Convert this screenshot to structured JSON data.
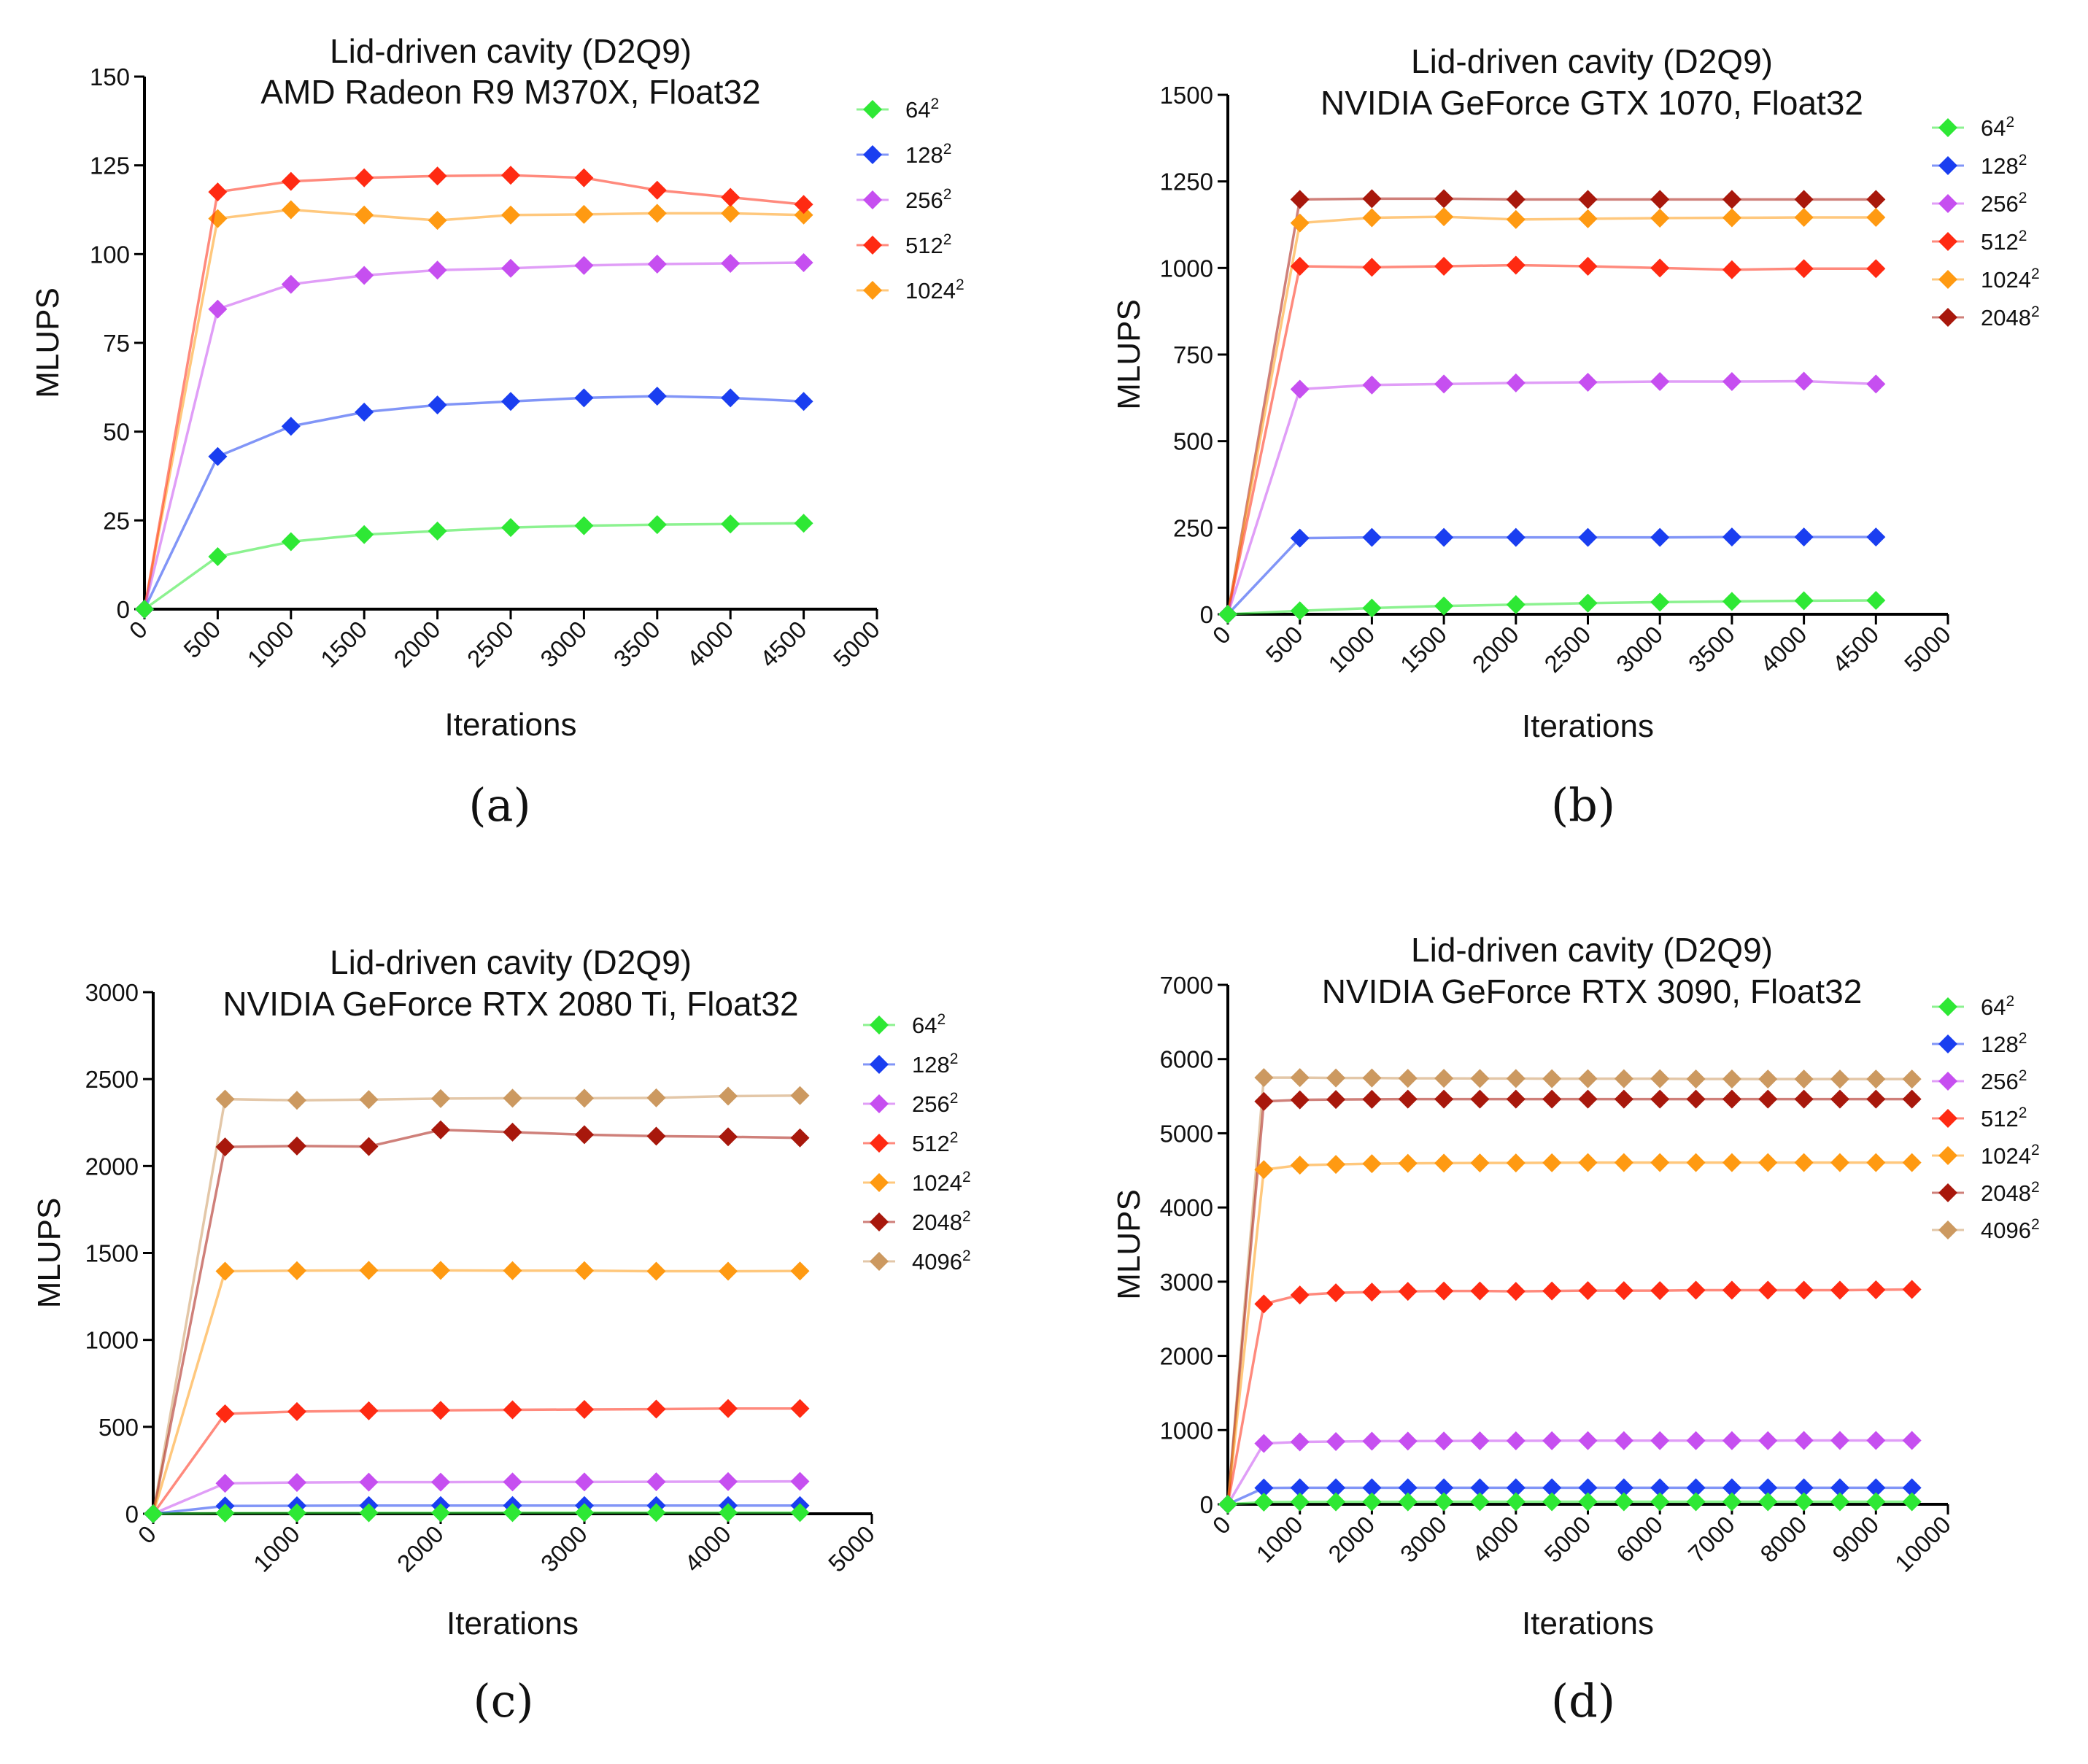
{
  "series_colors": {
    "64": "#2ee835",
    "128": "#1a3ef0",
    "256": "#c64ff0",
    "512": "#ff2a12",
    "1024": "#ff9a12",
    "2048": "#a8180c",
    "4096": "#cc9960"
  },
  "chart_data": [
    {
      "type": "line",
      "panel_label": "(a)",
      "title": [
        "Lid-driven cavity (D2Q9)",
        "AMD Radeon R9 M370X, Float32"
      ],
      "xlabel": "Iterations",
      "ylabel": "MLUPS",
      "xlim": [
        0,
        5000
      ],
      "ylim": [
        0,
        150
      ],
      "xticks": [
        "0",
        "500",
        "1000",
        "1500",
        "2000",
        "2500",
        "3000",
        "3500",
        "4000",
        "4500",
        "5000"
      ],
      "yticks": [
        "0",
        "25",
        "50",
        "75",
        "100",
        "125",
        "150"
      ],
      "legend": [
        {
          "base": "64",
          "exp": "2"
        },
        {
          "base": "128",
          "exp": "2"
        },
        {
          "base": "256",
          "exp": "2"
        },
        {
          "base": "512",
          "exp": "2"
        },
        {
          "base": "1024",
          "exp": "2"
        }
      ],
      "x": [
        0,
        500,
        1000,
        1500,
        2000,
        2500,
        3000,
        3500,
        4000,
        4500
      ],
      "series": [
        {
          "name": "1024",
          "values": [
            0,
            110,
            112.5,
            111,
            109.5,
            111,
            111.2,
            111.5,
            111.5,
            111
          ]
        },
        {
          "name": "512",
          "values": [
            0,
            117.5,
            120.5,
            121.5,
            122,
            122.2,
            121.5,
            118,
            116,
            114
          ]
        },
        {
          "name": "256",
          "values": [
            0,
            84.5,
            91.5,
            94,
            95.5,
            96,
            96.8,
            97.2,
            97.4,
            97.6
          ]
        },
        {
          "name": "128",
          "values": [
            0,
            43,
            51.5,
            55.5,
            57.5,
            58.5,
            59.5,
            60,
            59.5,
            58.5
          ]
        },
        {
          "name": "64",
          "values": [
            0,
            14.8,
            19,
            21,
            22,
            23,
            23.5,
            23.8,
            24,
            24.2
          ]
        }
      ]
    },
    {
      "type": "line",
      "panel_label": "(b)",
      "title": [
        "Lid-driven cavity (D2Q9)",
        "NVIDIA GeForce GTX 1070, Float32"
      ],
      "xlabel": "Iterations",
      "ylabel": "MLUPS",
      "xlim": [
        0,
        5000
      ],
      "ylim": [
        0,
        1500
      ],
      "xticks": [
        "0",
        "500",
        "1000",
        "1500",
        "2000",
        "2500",
        "3000",
        "3500",
        "4000",
        "4500",
        "5000"
      ],
      "yticks": [
        "0",
        "250",
        "500",
        "750",
        "1000",
        "1250",
        "1500"
      ],
      "legend": [
        {
          "base": "64",
          "exp": "2"
        },
        {
          "base": "128",
          "exp": "2"
        },
        {
          "base": "256",
          "exp": "2"
        },
        {
          "base": "512",
          "exp": "2"
        },
        {
          "base": "1024",
          "exp": "2"
        },
        {
          "base": "2048",
          "exp": "2"
        }
      ],
      "x": [
        0,
        500,
        1000,
        1500,
        2000,
        2500,
        3000,
        3500,
        4000,
        4500
      ],
      "series": [
        {
          "name": "2048",
          "values": [
            0,
            1198,
            1200,
            1200,
            1198,
            1198,
            1198,
            1198,
            1198,
            1198
          ]
        },
        {
          "name": "1024",
          "values": [
            0,
            1130,
            1145,
            1148,
            1140,
            1142,
            1144,
            1145,
            1146,
            1146
          ]
        },
        {
          "name": "512",
          "values": [
            0,
            1005,
            1002,
            1005,
            1008,
            1005,
            1000,
            995,
            998,
            998
          ]
        },
        {
          "name": "256",
          "values": [
            0,
            650,
            662,
            665,
            668,
            670,
            672,
            672,
            673,
            665
          ]
        },
        {
          "name": "128",
          "values": [
            0,
            220,
            222,
            222,
            222,
            222,
            222,
            223,
            223,
            223
          ]
        },
        {
          "name": "64",
          "values": [
            0,
            10,
            18,
            24,
            28,
            32,
            35,
            37,
            39,
            40
          ]
        }
      ]
    },
    {
      "type": "line",
      "panel_label": "(c)",
      "title": [
        "Lid-driven cavity (D2Q9)",
        "NVIDIA GeForce RTX 2080 Ti, Float32"
      ],
      "xlabel": "Iterations",
      "ylabel": "MLUPS",
      "xlim": [
        0,
        5000
      ],
      "ylim": [
        0,
        3000
      ],
      "xticks": [
        "0",
        "1000",
        "2000",
        "3000",
        "4000",
        "5000"
      ],
      "yticks": [
        "0",
        "500",
        "1000",
        "1500",
        "2000",
        "2500",
        "3000"
      ],
      "legend": [
        {
          "base": "64",
          "exp": "2"
        },
        {
          "base": "128",
          "exp": "2"
        },
        {
          "base": "256",
          "exp": "2"
        },
        {
          "base": "512",
          "exp": "2"
        },
        {
          "base": "1024",
          "exp": "2"
        },
        {
          "base": "2048",
          "exp": "2"
        },
        {
          "base": "4096",
          "exp": "2"
        }
      ],
      "x": [
        0,
        500,
        1000,
        1500,
        2000,
        2500,
        3000,
        3500,
        4000,
        4500
      ],
      "series": [
        {
          "name": "4096",
          "values": [
            0,
            2385,
            2378,
            2382,
            2388,
            2390,
            2390,
            2392,
            2402,
            2405
          ]
        },
        {
          "name": "2048",
          "values": [
            0,
            2110,
            2115,
            2112,
            2208,
            2195,
            2180,
            2172,
            2168,
            2162
          ]
        },
        {
          "name": "1024",
          "values": [
            0,
            1395,
            1398,
            1400,
            1400,
            1398,
            1398,
            1395,
            1395,
            1396
          ]
        },
        {
          "name": "512",
          "values": [
            0,
            575,
            588,
            592,
            595,
            598,
            600,
            602,
            605,
            605
          ]
        },
        {
          "name": "256",
          "values": [
            0,
            175,
            180,
            182,
            182,
            183,
            183,
            184,
            185,
            186
          ]
        },
        {
          "name": "128",
          "values": [
            0,
            45,
            46,
            47,
            47,
            47,
            47,
            47,
            47,
            47
          ]
        },
        {
          "name": "64",
          "values": [
            0,
            4,
            5,
            6,
            6,
            7,
            7,
            7,
            7,
            7
          ]
        }
      ]
    },
    {
      "type": "line",
      "panel_label": "(d)",
      "title": [
        "Lid-driven cavity (D2Q9)",
        "NVIDIA GeForce RTX 3090, Float32"
      ],
      "xlabel": "Iterations",
      "ylabel": "MLUPS",
      "xlim": [
        0,
        10000
      ],
      "ylim": [
        0,
        7000
      ],
      "xticks": [
        "0",
        "1000",
        "2000",
        "3000",
        "4000",
        "5000",
        "6000",
        "7000",
        "8000",
        "9000",
        "10000"
      ],
      "yticks": [
        "0",
        "1000",
        "2000",
        "3000",
        "4000",
        "5000",
        "6000",
        "7000"
      ],
      "legend": [
        {
          "base": "64",
          "exp": "2"
        },
        {
          "base": "128",
          "exp": "2"
        },
        {
          "base": "256",
          "exp": "2"
        },
        {
          "base": "512",
          "exp": "2"
        },
        {
          "base": "1024",
          "exp": "2"
        },
        {
          "base": "2048",
          "exp": "2"
        },
        {
          "base": "4096",
          "exp": "2"
        }
      ],
      "x": [
        0,
        500,
        1000,
        1500,
        2000,
        2500,
        3000,
        3500,
        4000,
        4500,
        5000,
        5500,
        6000,
        6500,
        7000,
        7500,
        8000,
        8500,
        9000,
        9500
      ],
      "series": [
        {
          "name": "4096",
          "values": [
            0,
            5750,
            5750,
            5745,
            5745,
            5740,
            5740,
            5738,
            5738,
            5735,
            5735,
            5735,
            5735,
            5732,
            5732,
            5730,
            5730,
            5730,
            5730,
            5730
          ]
        },
        {
          "name": "2048",
          "values": [
            0,
            5430,
            5450,
            5455,
            5458,
            5460,
            5460,
            5460,
            5460,
            5460,
            5460,
            5460,
            5460,
            5460,
            5460,
            5460,
            5460,
            5460,
            5460,
            5460
          ]
        },
        {
          "name": "1024",
          "values": [
            0,
            4510,
            4570,
            4580,
            4590,
            4595,
            4598,
            4600,
            4600,
            4602,
            4605,
            4605,
            4605,
            4605,
            4605,
            4605,
            4605,
            4605,
            4605,
            4605
          ]
        },
        {
          "name": "512",
          "values": [
            0,
            2700,
            2820,
            2850,
            2860,
            2870,
            2875,
            2875,
            2870,
            2875,
            2880,
            2880,
            2880,
            2885,
            2885,
            2885,
            2885,
            2885,
            2890,
            2895
          ]
        },
        {
          "name": "256",
          "values": [
            0,
            820,
            840,
            845,
            850,
            852,
            853,
            855,
            855,
            856,
            858,
            858,
            858,
            858,
            858,
            858,
            860,
            860,
            860,
            860
          ]
        },
        {
          "name": "128",
          "values": [
            0,
            220,
            222,
            222,
            222,
            222,
            222,
            222,
            222,
            222,
            222,
            222,
            222,
            222,
            222,
            222,
            222,
            222,
            222,
            222
          ]
        },
        {
          "name": "64",
          "values": [
            0,
            30,
            32,
            33,
            33,
            33,
            34,
            34,
            34,
            34,
            34,
            34,
            34,
            34,
            34,
            34,
            34,
            34,
            34,
            34
          ]
        }
      ]
    }
  ]
}
